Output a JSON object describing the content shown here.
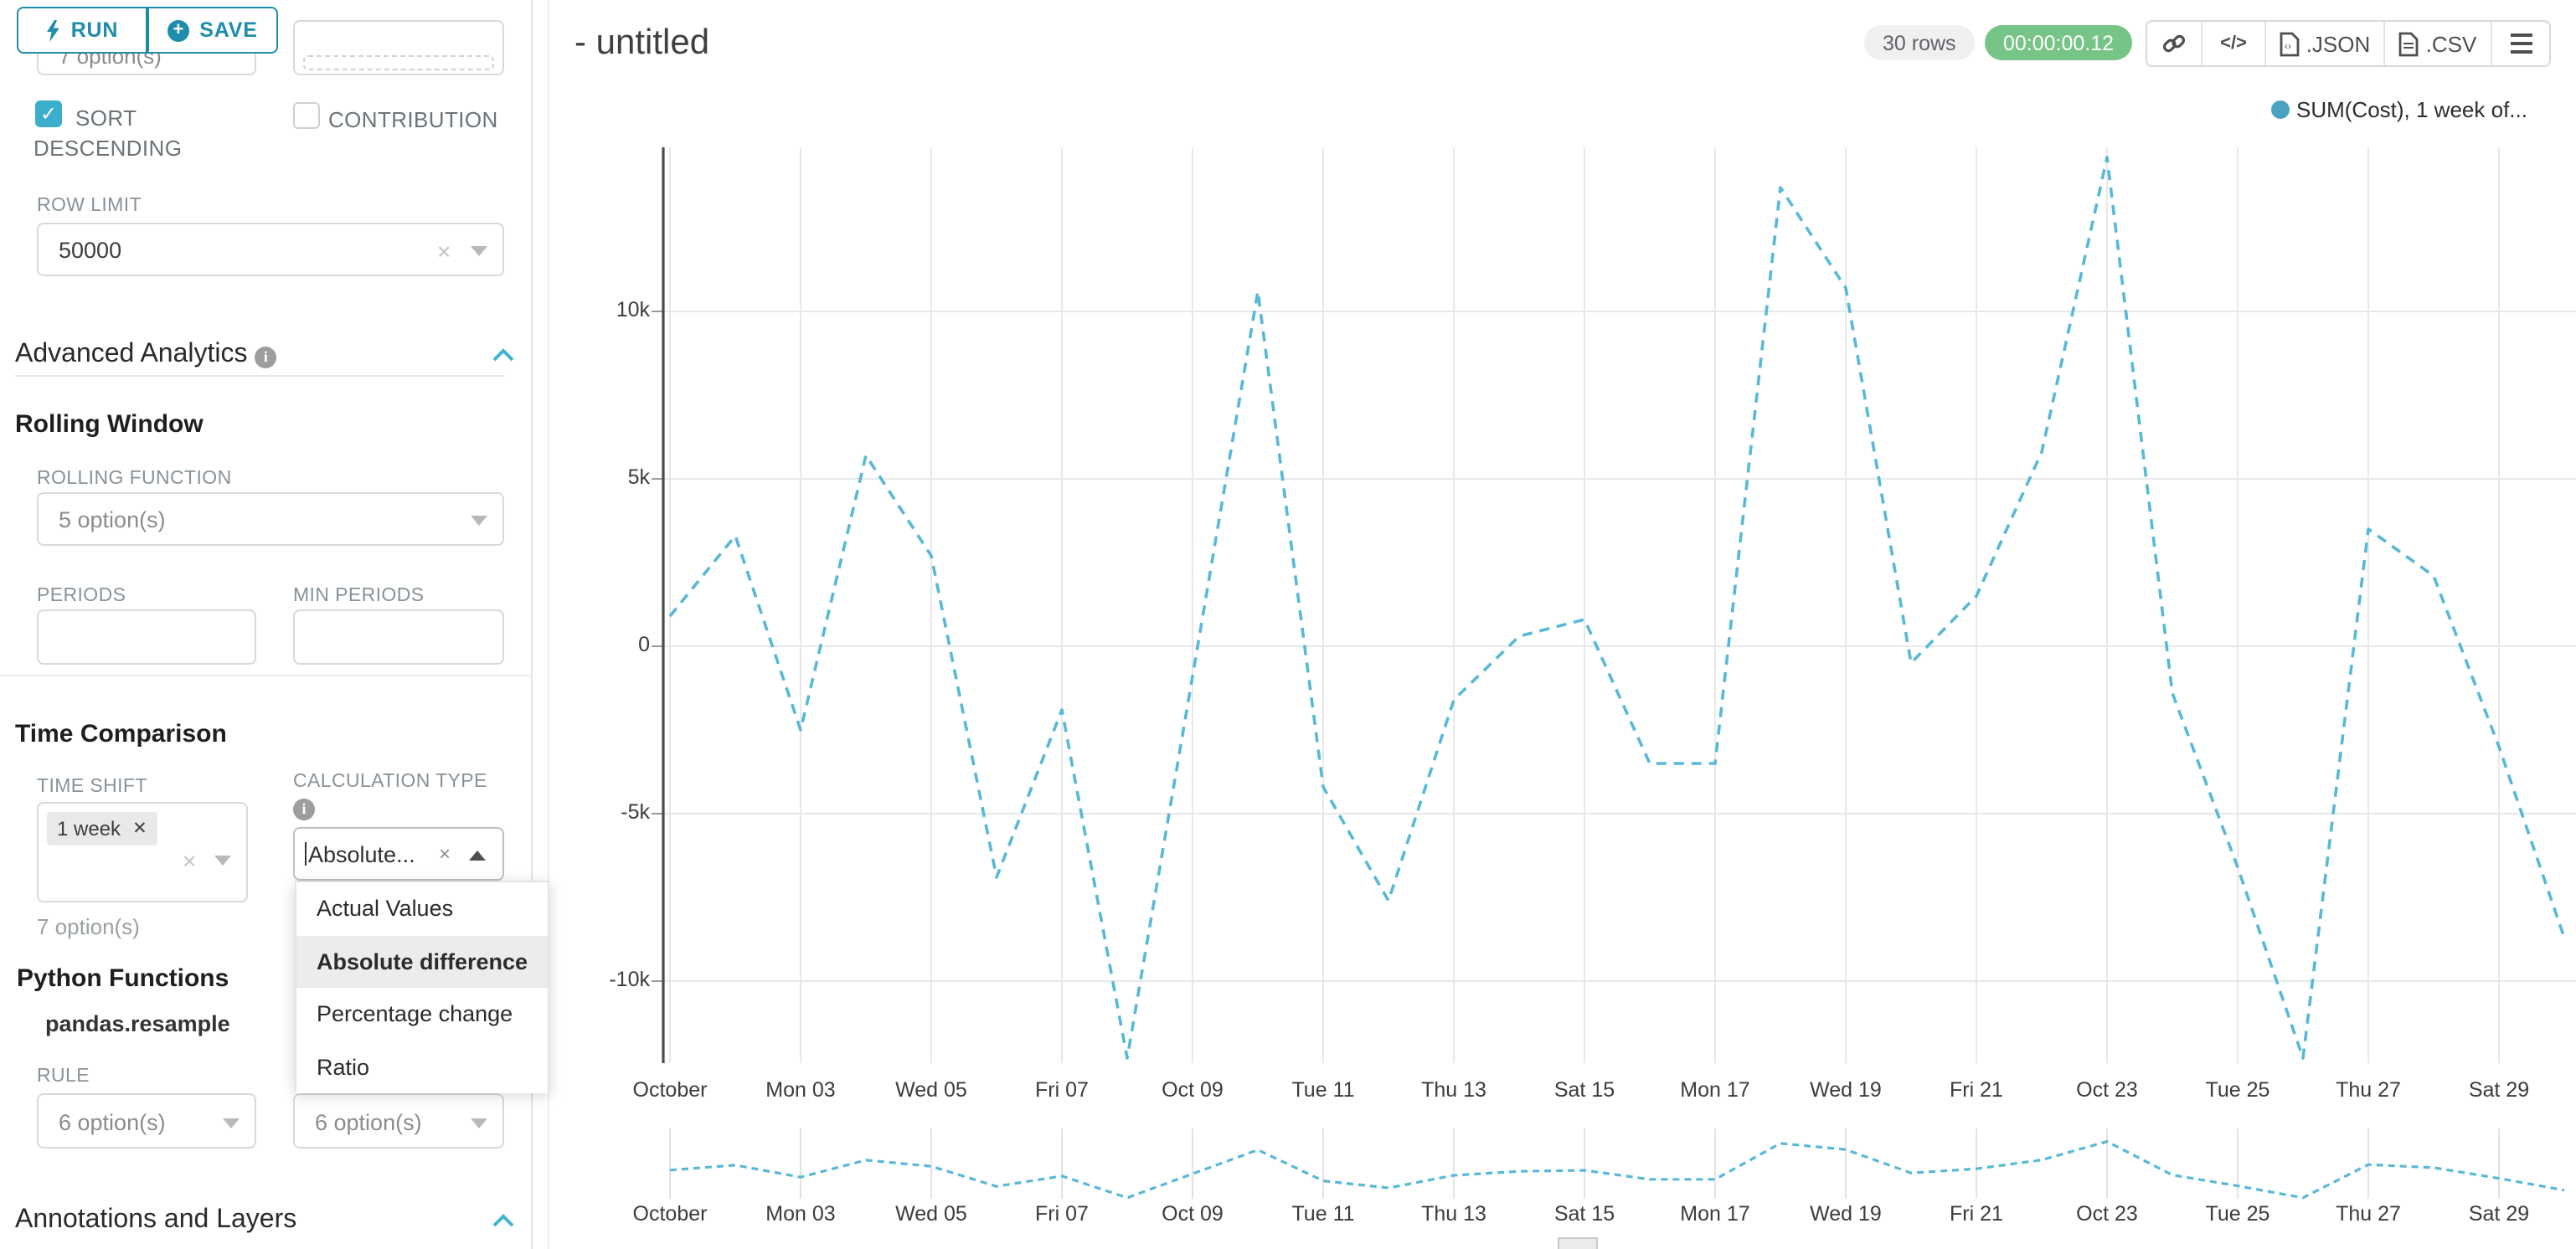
{
  "toolbar": {
    "run_label": "RUN",
    "save_label": "SAVE"
  },
  "sidebar": {
    "top_partial": {
      "left_value": "7 option(s)"
    },
    "checkboxes": {
      "sort_descending": "SORT DESCENDING",
      "contribution": "CONTRIBUTION"
    },
    "row_limit": {
      "label": "ROW LIMIT",
      "value": "50000"
    },
    "advanced_analytics": {
      "title": "Advanced Analytics"
    },
    "rolling_window": {
      "title": "Rolling Window",
      "rolling_function_label": "ROLLING FUNCTION",
      "rolling_function_value": "5 option(s)",
      "periods_label": "PERIODS",
      "min_periods_label": "MIN PERIODS"
    },
    "time_comparison": {
      "title": "Time Comparison",
      "time_shift_label": "TIME SHIFT",
      "time_shift_tag": "1 week",
      "time_shift_placeholder": "7 option(s)",
      "calculation_type_label": "CALCULATION TYPE",
      "calculation_type_value": "Absolute...",
      "dropdown_options": [
        "Actual Values",
        "Absolute difference",
        "Percentage change",
        "Ratio"
      ],
      "dropdown_selected": "Absolute difference"
    },
    "python_functions": {
      "title": "Python Functions",
      "subtitle": "pandas.resample",
      "rule_label": "RULE",
      "rule_value": "6 option(s)",
      "second_value": "6 option(s)"
    },
    "annotations": {
      "title": "Annotations and Layers"
    }
  },
  "header": {
    "title": "- untitled",
    "rows_badge": "30 rows",
    "timer_badge": "00:00:00.12",
    "json_label": ".JSON",
    "csv_label": ".CSV",
    "code_glyph": "</>"
  },
  "colors": {
    "accent_teal": "#1e8cab",
    "checkbox_teal": "#3caecd",
    "section_chevron": "#41b3d3",
    "timer_green": "#77c487",
    "rows_pill_bg": "#f0f0f0",
    "line_blue": "#57b8d8",
    "legend_dot": "#4aa2c0",
    "grid_gray": "#e8e8e8"
  },
  "chart_data": {
    "type": "line",
    "title": "- untitled",
    "legend": [
      {
        "name": "SUM(Cost), 1 week of...",
        "color": "#4aa2c0"
      }
    ],
    "legend_position": "top-right",
    "grid": true,
    "line_style": "dashed",
    "x": [
      "Oct 01",
      "Oct 02",
      "Oct 03",
      "Oct 04",
      "Oct 05",
      "Oct 06",
      "Oct 07",
      "Oct 08",
      "Oct 09",
      "Oct 10",
      "Oct 11",
      "Oct 12",
      "Oct 13",
      "Oct 14",
      "Oct 15",
      "Oct 16",
      "Oct 17",
      "Oct 18",
      "Oct 19",
      "Oct 20",
      "Oct 21",
      "Oct 22",
      "Oct 23",
      "Oct 24",
      "Oct 25",
      "Oct 26",
      "Oct 27",
      "Oct 28",
      "Oct 29",
      "Oct 30"
    ],
    "series": [
      {
        "name": "SUM(Cost), 1 week of...",
        "color": "#57b8d8",
        "dashed": true,
        "values": [
          900,
          3300,
          -2500,
          5700,
          2700,
          -6900,
          -1900,
          -12300,
          -900,
          10600,
          -4200,
          -7600,
          -1600,
          300,
          800,
          -3500,
          -3500,
          13700,
          10700,
          -500,
          1500,
          5800,
          14600,
          -1400,
          -6600,
          -12300,
          3500,
          2100,
          -3000,
          -8700
        ]
      }
    ],
    "x_tick_labels": [
      "October",
      "Mon 03",
      "Wed 05",
      "Fri 07",
      "Oct 09",
      "Tue 11",
      "Thu 13",
      "Sat 15",
      "Mon 17",
      "Wed 19",
      "Fri 21",
      "Oct 23",
      "Tue 25",
      "Thu 27",
      "Sat 29"
    ],
    "y_tick_labels": [
      "10k",
      "5k",
      "0",
      "-5k",
      "-10k"
    ],
    "y_ticks": [
      10000,
      5000,
      0,
      -5000,
      -10000
    ],
    "ylim": [
      -12450,
      14800
    ],
    "mini_range_chart": true
  }
}
